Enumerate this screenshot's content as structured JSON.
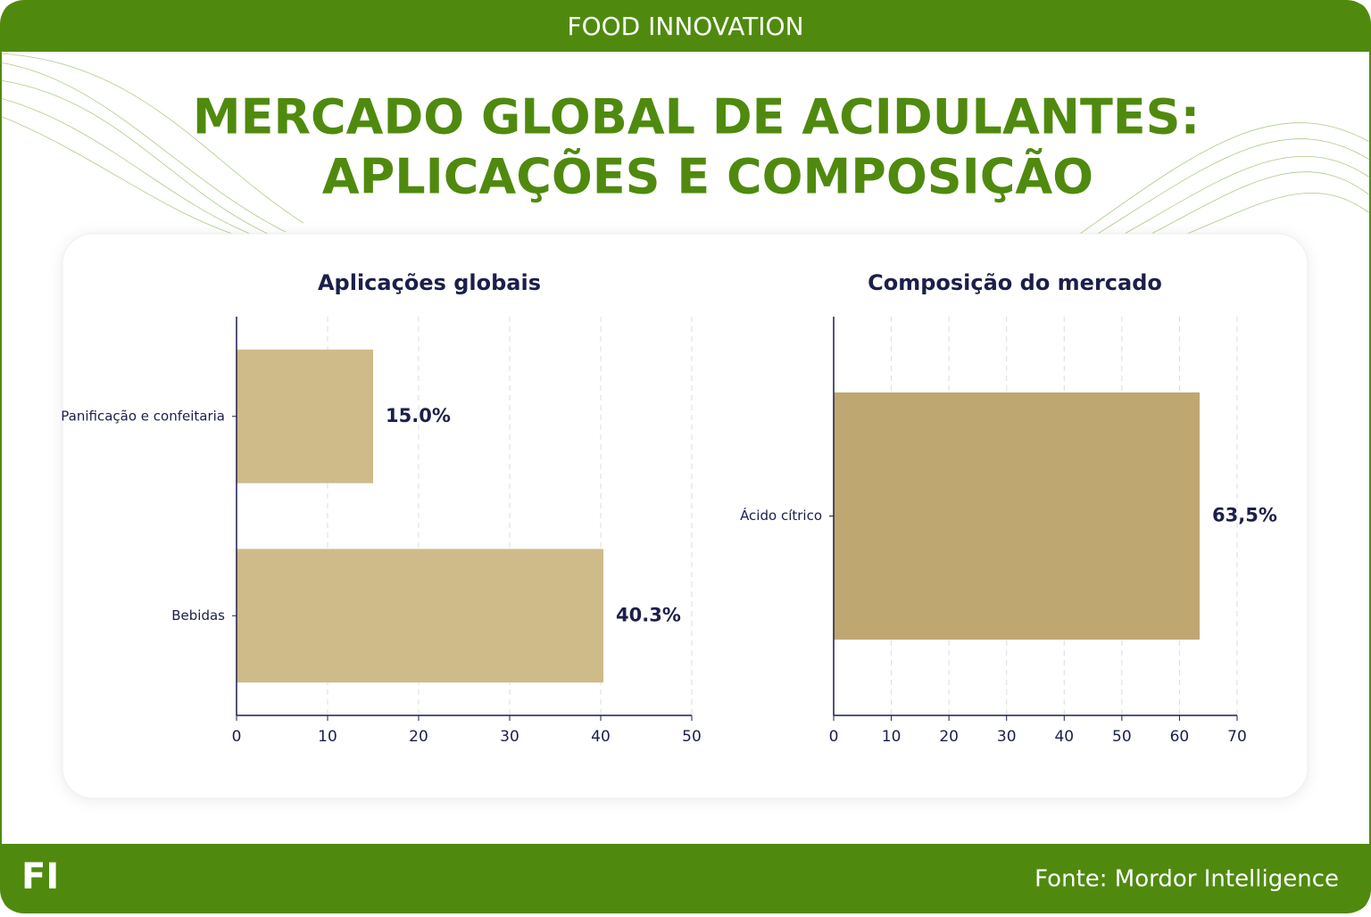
{
  "header": "FOOD INNOVATION",
  "title": [
    "MERCADO GLOBAL DE ACIDULANTES:",
    "APLICAÇÕES E COMPOSIÇÃO"
  ],
  "chart_data": [
    {
      "type": "bar",
      "orientation": "horizontal",
      "title": "Aplicações globais",
      "categories": [
        "Panificação e confeitaria",
        "Bebidas"
      ],
      "values": [
        15.0,
        40.3
      ],
      "value_labels": [
        "15.0%",
        "40.3%"
      ],
      "color": "#cfba8a",
      "xlim": [
        0,
        50
      ],
      "xticks": [
        0,
        10,
        20,
        30,
        40,
        50
      ],
      "grid": true
    },
    {
      "type": "bar",
      "orientation": "horizontal",
      "title": "Composição do mercado",
      "categories": [
        "Ácido cítrico"
      ],
      "values": [
        63.5
      ],
      "value_labels": [
        "63,5%"
      ],
      "color": "#bfa772",
      "xlim": [
        0,
        70
      ],
      "xticks": [
        0,
        10,
        20,
        30,
        40,
        50,
        60,
        70
      ],
      "grid": true
    }
  ],
  "footer": {
    "logo": "FI",
    "source": "Fonte: Mordor Intelligence"
  }
}
